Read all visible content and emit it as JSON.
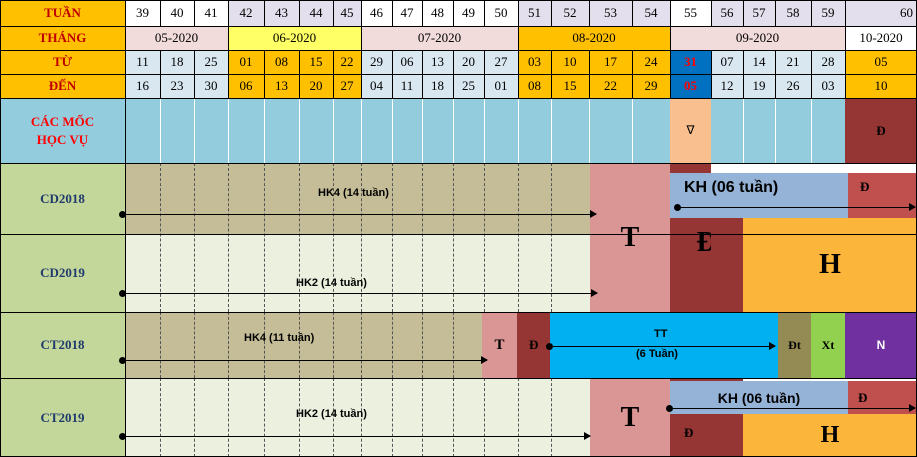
{
  "header": {
    "weeks_label": "TUẦN",
    "month_label": "THÁNG",
    "from_label": "TỪ",
    "to_label": "ĐẾN",
    "weeks": [
      "39",
      "40",
      "41",
      "42",
      "43",
      "44",
      "45",
      "46",
      "47",
      "48",
      "49",
      "50",
      "51",
      "52",
      "53",
      "54",
      "55",
      "56",
      "57",
      "58",
      "59",
      "60"
    ],
    "months": [
      "05-2020",
      "06-2020",
      "07-2020",
      "08-2020",
      "09-2020",
      "10-2020"
    ],
    "from_days": [
      "11",
      "18",
      "25",
      "01",
      "08",
      "15",
      "22",
      "29",
      "06",
      "13",
      "20",
      "27",
      "03",
      "10",
      "17",
      "24",
      "31",
      "07",
      "14",
      "21",
      "28",
      "05"
    ],
    "to_days": [
      "16",
      "23",
      "30",
      "06",
      "13",
      "20",
      "27",
      "04",
      "11",
      "18",
      "25",
      "01",
      "08",
      "15",
      "22",
      "29",
      "05",
      "12",
      "19",
      "26",
      "03",
      "10"
    ]
  },
  "milestones": {
    "label": "CÁC MỐC HỌC VỤ",
    "marker_v": "∇",
    "marker_d": "Đ"
  },
  "rows": [
    {
      "name": "CD2018",
      "term": "HK4 (14 tuần)"
    },
    {
      "name": "CD2019",
      "term": "HK2 (14 tuần)"
    },
    {
      "name": "CT2018",
      "term": "HK4 (11 tuần)"
    },
    {
      "name": "CT2019",
      "term": "HK2 (14 tuần)"
    }
  ],
  "blocks": {
    "t_big": "T",
    "t_small": "T",
    "d_small": "Đ",
    "d_big": "Đ",
    "h_big": "H",
    "kh_cd": "KH (06 tuần)",
    "kh_ct": "KH (06  tuần)",
    "d_top_cd": "Đ",
    "d_top_ct": "Đ",
    "d_bottom_ct": "Đ",
    "h_ct": "H",
    "tt_title": "TT",
    "tt_sub": "(6 Tuần)",
    "dt": "Đt",
    "xt": "Xt",
    "n": "N"
  },
  "colors": {
    "label_bg": "#c4d79b",
    "header_left_bg": "#ffc000",
    "header_left_text": "#c00000",
    "grid_bg": "#d9e7f1",
    "milestone_bg": "#93cddd",
    "milestone_text": "#ff0000",
    "past_term_bg": "#c4bd97",
    "new_term_bg": "#ebf1de",
    "t_bg": "#da9694",
    "d_bg": "#963634",
    "h_bg": "#fab53a",
    "kh_bg": "#95b3d7",
    "d_red_bg": "#c0504d",
    "tt_bg": "#00b0f0",
    "dt_bg": "#948a54",
    "xt_bg": "#92d050",
    "n_bg": "#7030a0",
    "v_bg": "#fabf8f",
    "m05": "#f2dcdb",
    "m06": "#ffff66",
    "m07": "#f2dcdb",
    "m08": "#ffc000",
    "m09": "#f2dcdb",
    "m10": "#ffffff",
    "week_alt": "#e4dfec"
  }
}
